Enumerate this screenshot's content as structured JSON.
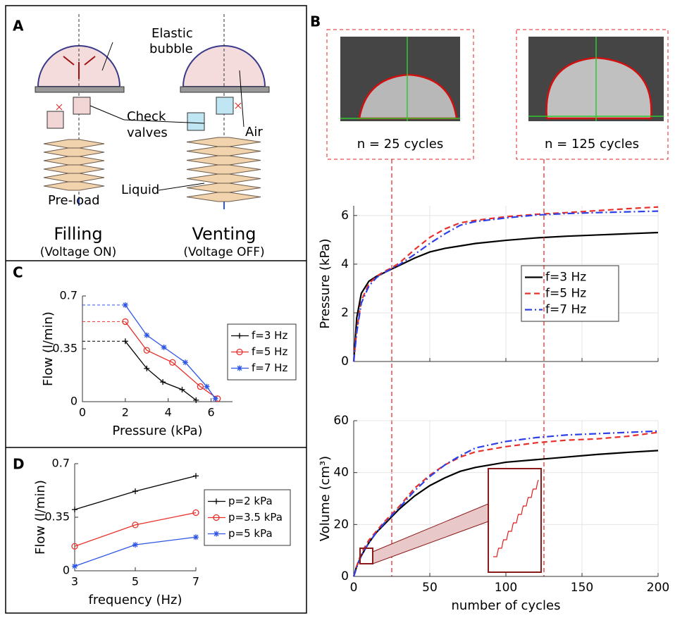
{
  "figure": {
    "panels": [
      "A",
      "B",
      "C",
      "D"
    ],
    "labels": [
      "Elastic",
      "bubble",
      "Check",
      "valves",
      "Air",
      "Pre-load",
      "Liquid"
    ],
    "modes": [
      {
        "name": "Filling",
        "state": "(Voltage ON)",
        "color": "#8b1a1a"
      },
      {
        "name": "Venting",
        "state": "(Voltage OFF)",
        "color": "#1f6fbf"
      }
    ],
    "photos": [
      "n = 25 cycles",
      "n = 125 cycles"
    ]
  },
  "chart_data": [
    {
      "type": "line",
      "xlabel": "Pressure (kPa)",
      "ylabel": "Flow (l/min)",
      "xlim": [
        0,
        7
      ],
      "xticks": [
        0,
        2,
        4,
        6
      ],
      "ylim": [
        0,
        0.7
      ],
      "yticks": [
        0,
        0.35,
        0.7
      ],
      "grid": false,
      "ref_lines": true,
      "legend": "right",
      "series": [
        {
          "name": "f=3 Hz",
          "color": "#000000",
          "marker": "plus",
          "dash": "solid",
          "x": [
            2,
            3,
            3.75,
            4.65,
            5.3
          ],
          "values": [
            0.4,
            0.22,
            0.13,
            0.08,
            0.01
          ]
        },
        {
          "name": "f=5 Hz",
          "color": "#e8302a",
          "marker": "circle",
          "dash": "solid",
          "x": [
            2,
            3,
            4.2,
            5.5,
            6.3
          ],
          "values": [
            0.53,
            0.34,
            0.26,
            0.1,
            0.02
          ]
        },
        {
          "name": "f=7 Hz",
          "color": "#2d55e6",
          "marker": "star",
          "dash": "solid",
          "x": [
            2,
            3,
            3.8,
            4.8,
            5.8,
            6.2
          ],
          "values": [
            0.64,
            0.44,
            0.36,
            0.26,
            0.1,
            0.02
          ]
        }
      ]
    },
    {
      "type": "line",
      "xlabel": "frequency (Hz)",
      "ylabel": "Flow (l/min)",
      "xlim": [
        3,
        7
      ],
      "xticks": [
        3,
        5,
        7
      ],
      "ylim": [
        0,
        0.7
      ],
      "yticks": [
        0,
        0.35,
        0.7
      ],
      "grid": false,
      "legend": "right",
      "x": [
        3,
        5,
        7
      ],
      "series": [
        {
          "name": "p=2 kPa",
          "color": "#000000",
          "marker": "plus",
          "dash": "solid",
          "values": [
            0.4,
            0.52,
            0.62
          ]
        },
        {
          "name": "p=3.5 kPa",
          "color": "#e8302a",
          "marker": "circle",
          "dash": "solid",
          "values": [
            0.16,
            0.3,
            0.38
          ]
        },
        {
          "name": "p=5 kPa",
          "color": "#2d55e6",
          "marker": "star",
          "dash": "solid",
          "values": [
            0.03,
            0.17,
            0.22
          ]
        }
      ]
    },
    {
      "type": "line",
      "ylabel": "Pressure (kPa)",
      "xlim": [
        0,
        200
      ],
      "xticks": [
        0,
        50,
        100,
        150,
        200
      ],
      "xtick_labels": false,
      "ylim": [
        0,
        6.4
      ],
      "yticks": [
        0,
        2,
        4,
        6
      ],
      "grid": true,
      "legend": "right",
      "vlines": [
        25,
        125
      ],
      "x": [
        0,
        2,
        5,
        10,
        15,
        20,
        25,
        30,
        40,
        50,
        60,
        70,
        80,
        100,
        120,
        140,
        160,
        180,
        200
      ],
      "series": [
        {
          "name": "f=3 Hz",
          "color": "#000000",
          "dash": "solid",
          "values": [
            0,
            1.8,
            2.8,
            3.3,
            3.5,
            3.65,
            3.8,
            3.95,
            4.25,
            4.5,
            4.65,
            4.75,
            4.85,
            4.98,
            5.08,
            5.15,
            5.2,
            5.25,
            5.3
          ]
        },
        {
          "name": "f=5 Hz",
          "color": "#e8302a",
          "dash": "dashed",
          "values": [
            0,
            1.3,
            2.5,
            3.2,
            3.5,
            3.7,
            3.85,
            4.05,
            4.6,
            5.1,
            5.45,
            5.7,
            5.8,
            5.95,
            6.05,
            6.12,
            6.2,
            6.28,
            6.35
          ]
        },
        {
          "name": "f=7 Hz",
          "color": "#2d3fe6",
          "dash": "dashdot",
          "values": [
            0,
            1.2,
            2.4,
            3.1,
            3.45,
            3.65,
            3.82,
            3.98,
            4.4,
            4.85,
            5.25,
            5.6,
            5.75,
            5.9,
            6.02,
            6.08,
            6.12,
            6.15,
            6.18
          ]
        }
      ]
    },
    {
      "type": "line",
      "xlabel": "number of cycles",
      "ylabel": "Volume (cm³)",
      "xlim": [
        0,
        200
      ],
      "xticks": [
        0,
        50,
        100,
        150,
        200
      ],
      "ylim": [
        0,
        60
      ],
      "yticks": [
        0,
        20,
        40,
        60
      ],
      "grid": true,
      "x": [
        0,
        2,
        5,
        10,
        15,
        20,
        25,
        30,
        40,
        50,
        60,
        70,
        80,
        100,
        120,
        140,
        160,
        180,
        200
      ],
      "series": [
        {
          "color": "#000000",
          "dash": "solid",
          "values": [
            0,
            4,
            8,
            13,
            17,
            20,
            23,
            26,
            31,
            35,
            38,
            40.5,
            42,
            44,
            45,
            46,
            47,
            47.8,
            48.5
          ]
        },
        {
          "color": "#e8302a",
          "dash": "dashed",
          "values": [
            0,
            4,
            9,
            14,
            17.5,
            21,
            24,
            27,
            34,
            39,
            43,
            46,
            48,
            50,
            51.5,
            52.5,
            53,
            54,
            55.5
          ]
        },
        {
          "color": "#2d3fe6",
          "dash": "dashdot",
          "values": [
            0,
            3.5,
            8,
            13,
            17,
            20.5,
            23.5,
            26.5,
            33,
            38.5,
            43,
            46.5,
            49.5,
            52,
            53.5,
            54.5,
            55,
            55.5,
            56
          ]
        }
      ]
    }
  ]
}
